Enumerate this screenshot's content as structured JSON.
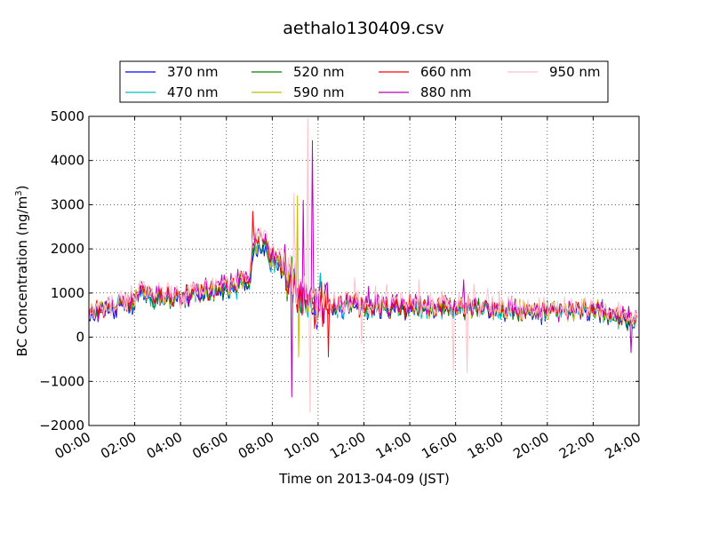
{
  "chart_data": {
    "type": "line",
    "title": "aethalo130409.csv",
    "xlabel": "Time on 2013-04-09 (JST)",
    "ylabel": "BC Concentration (ng/m",
    "ylabel_superscript": "3",
    "ylabel_suffix": ")",
    "x_unit": "hours",
    "xlim": [
      0,
      24
    ],
    "ylim": [
      -2000,
      5000
    ],
    "x_ticks": [
      0,
      2,
      4,
      6,
      8,
      10,
      12,
      14,
      16,
      18,
      20,
      22,
      24
    ],
    "x_tick_labels": [
      "00:00",
      "02:00",
      "04:00",
      "06:00",
      "08:00",
      "10:00",
      "12:00",
      "14:00",
      "16:00",
      "18:00",
      "20:00",
      "22:00",
      "24:00"
    ],
    "y_ticks": [
      -2000,
      -1000,
      0,
      1000,
      2000,
      3000,
      4000,
      5000
    ],
    "y_tick_labels": [
      "−2000",
      "−1000",
      "0",
      "1000",
      "2000",
      "3000",
      "4000",
      "5000"
    ],
    "grid": true,
    "legend_placement": "top",
    "series": [
      {
        "name": "370 nm",
        "color": "#0000ff",
        "amp": 1.0,
        "offset": 0
      },
      {
        "name": "470 nm",
        "color": "#00bfbf",
        "amp": 1.02,
        "offset": 1
      },
      {
        "name": "520 nm",
        "color": "#008000",
        "amp": 1.05,
        "offset": 2
      },
      {
        "name": "590 nm",
        "color": "#bfbf00",
        "amp": 1.1,
        "offset": 3
      },
      {
        "name": "660 nm",
        "color": "#ff0000",
        "amp": 1.12,
        "offset": 4
      },
      {
        "name": "880 nm",
        "color": "#bf00bf",
        "amp": 1.2,
        "offset": 5
      },
      {
        "name": "950 nm",
        "color": "#ffc0cb",
        "amp": 1.35,
        "offset": 6
      }
    ],
    "baseline": [
      [
        0.0,
        550
      ],
      [
        0.5,
        600
      ],
      [
        1.0,
        650
      ],
      [
        1.5,
        750
      ],
      [
        2.0,
        820
      ],
      [
        2.3,
        1000
      ],
      [
        2.6,
        920
      ],
      [
        3.0,
        850
      ],
      [
        3.5,
        900
      ],
      [
        4.0,
        800
      ],
      [
        4.5,
        950
      ],
      [
        5.0,
        1000
      ],
      [
        5.5,
        1050
      ],
      [
        6.0,
        1050
      ],
      [
        6.5,
        1150
      ],
      [
        7.0,
        1350
      ],
      [
        7.2,
        2000
      ],
      [
        7.5,
        2200
      ],
      [
        7.8,
        1900
      ],
      [
        8.0,
        1700
      ],
      [
        8.4,
        1550
      ],
      [
        8.7,
        1400
      ],
      [
        9.0,
        1200
      ],
      [
        9.3,
        900
      ],
      [
        9.6,
        800
      ],
      [
        10.0,
        700
      ],
      [
        10.5,
        700
      ],
      [
        11.0,
        700
      ],
      [
        12.0,
        680
      ],
      [
        13.0,
        660
      ],
      [
        14.0,
        640
      ],
      [
        15.0,
        660
      ],
      [
        16.0,
        650
      ],
      [
        17.0,
        620
      ],
      [
        18.0,
        650
      ],
      [
        19.0,
        560
      ],
      [
        20.0,
        560
      ],
      [
        21.0,
        560
      ],
      [
        22.0,
        580
      ],
      [
        23.0,
        480
      ],
      [
        23.5,
        350
      ],
      [
        23.8,
        400
      ]
    ],
    "spikes": [
      {
        "x": 7.15,
        "y": 2850,
        "series": [
          4
        ]
      },
      {
        "x": 8.7,
        "y": 1800,
        "series": [
          6
        ]
      },
      {
        "x": 8.85,
        "y": -1350,
        "series": [
          5
        ]
      },
      {
        "x": 8.95,
        "y": 3250,
        "series": [
          6
        ]
      },
      {
        "x": 9.1,
        "y": 3200,
        "series": [
          3
        ]
      },
      {
        "x": 9.15,
        "y": -450,
        "series": [
          3
        ]
      },
      {
        "x": 9.35,
        "y": 3100,
        "series": [
          5
        ]
      },
      {
        "x": 9.55,
        "y": 4950,
        "series": [
          6
        ]
      },
      {
        "x": 9.65,
        "y": -1700,
        "series": [
          6
        ]
      },
      {
        "x": 9.75,
        "y": 4450,
        "series": [
          5
        ]
      },
      {
        "x": 9.85,
        "y": 200,
        "series": [
          4
        ]
      },
      {
        "x": 10.1,
        "y": 1450,
        "series": [
          0,
          1
        ]
      },
      {
        "x": 10.45,
        "y": -450,
        "series": [
          4
        ]
      },
      {
        "x": 11.6,
        "y": 1350,
        "series": [
          6
        ]
      },
      {
        "x": 11.9,
        "y": -150,
        "series": [
          6
        ]
      },
      {
        "x": 12.2,
        "y": 1150,
        "series": [
          5
        ]
      },
      {
        "x": 12.5,
        "y": 1150,
        "series": [
          6
        ]
      },
      {
        "x": 13.0,
        "y": 1200,
        "series": [
          6
        ]
      },
      {
        "x": 13.6,
        "y": 1000,
        "series": [
          6
        ]
      },
      {
        "x": 14.4,
        "y": 1300,
        "series": [
          6
        ]
      },
      {
        "x": 14.9,
        "y": 1000,
        "series": [
          6
        ]
      },
      {
        "x": 15.4,
        "y": 1050,
        "series": [
          6
        ]
      },
      {
        "x": 15.9,
        "y": -750,
        "series": [
          6
        ]
      },
      {
        "x": 16.35,
        "y": 1300,
        "series": [
          5
        ]
      },
      {
        "x": 16.5,
        "y": -800,
        "series": [
          6
        ]
      },
      {
        "x": 16.8,
        "y": 1200,
        "series": [
          6
        ]
      },
      {
        "x": 17.4,
        "y": 1100,
        "series": [
          6
        ]
      },
      {
        "x": 17.9,
        "y": 1050,
        "series": [
          6
        ]
      },
      {
        "x": 22.4,
        "y": 850,
        "series": [
          0,
          1
        ]
      },
      {
        "x": 23.1,
        "y": 800,
        "series": [
          6
        ]
      },
      {
        "x": 23.55,
        "y": 700,
        "series": [
          5
        ]
      },
      {
        "x": 23.65,
        "y": -350,
        "series": [
          5
        ]
      }
    ]
  }
}
